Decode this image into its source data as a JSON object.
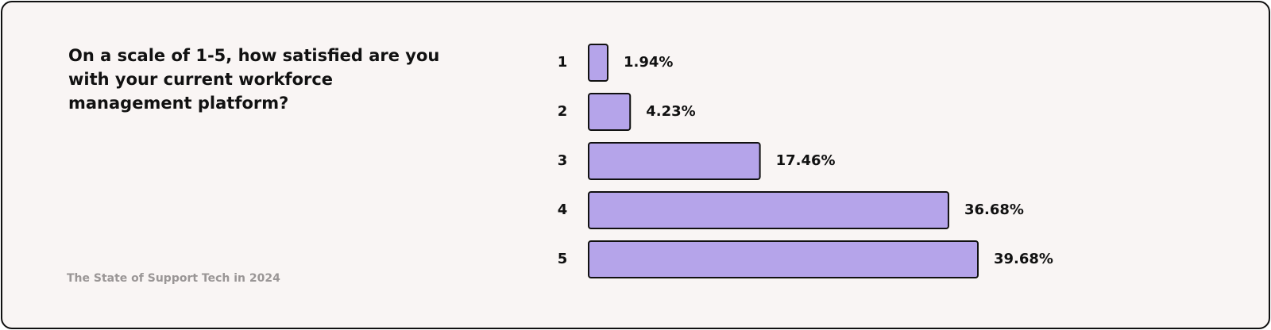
{
  "chart_data": {
    "type": "bar",
    "orientation": "horizontal",
    "title": "On a scale of 1-5, how satisfied are you with your current workforce management platform?",
    "footer": "The State of Support Tech in 2024",
    "categories": [
      "1",
      "2",
      "3",
      "4",
      "5"
    ],
    "values": [
      1.94,
      4.23,
      17.46,
      36.68,
      39.68
    ],
    "value_labels": [
      "1.94%",
      "4.23%",
      "17.46%",
      "36.68%",
      "39.68%"
    ],
    "color": "#b5a4ea"
  }
}
